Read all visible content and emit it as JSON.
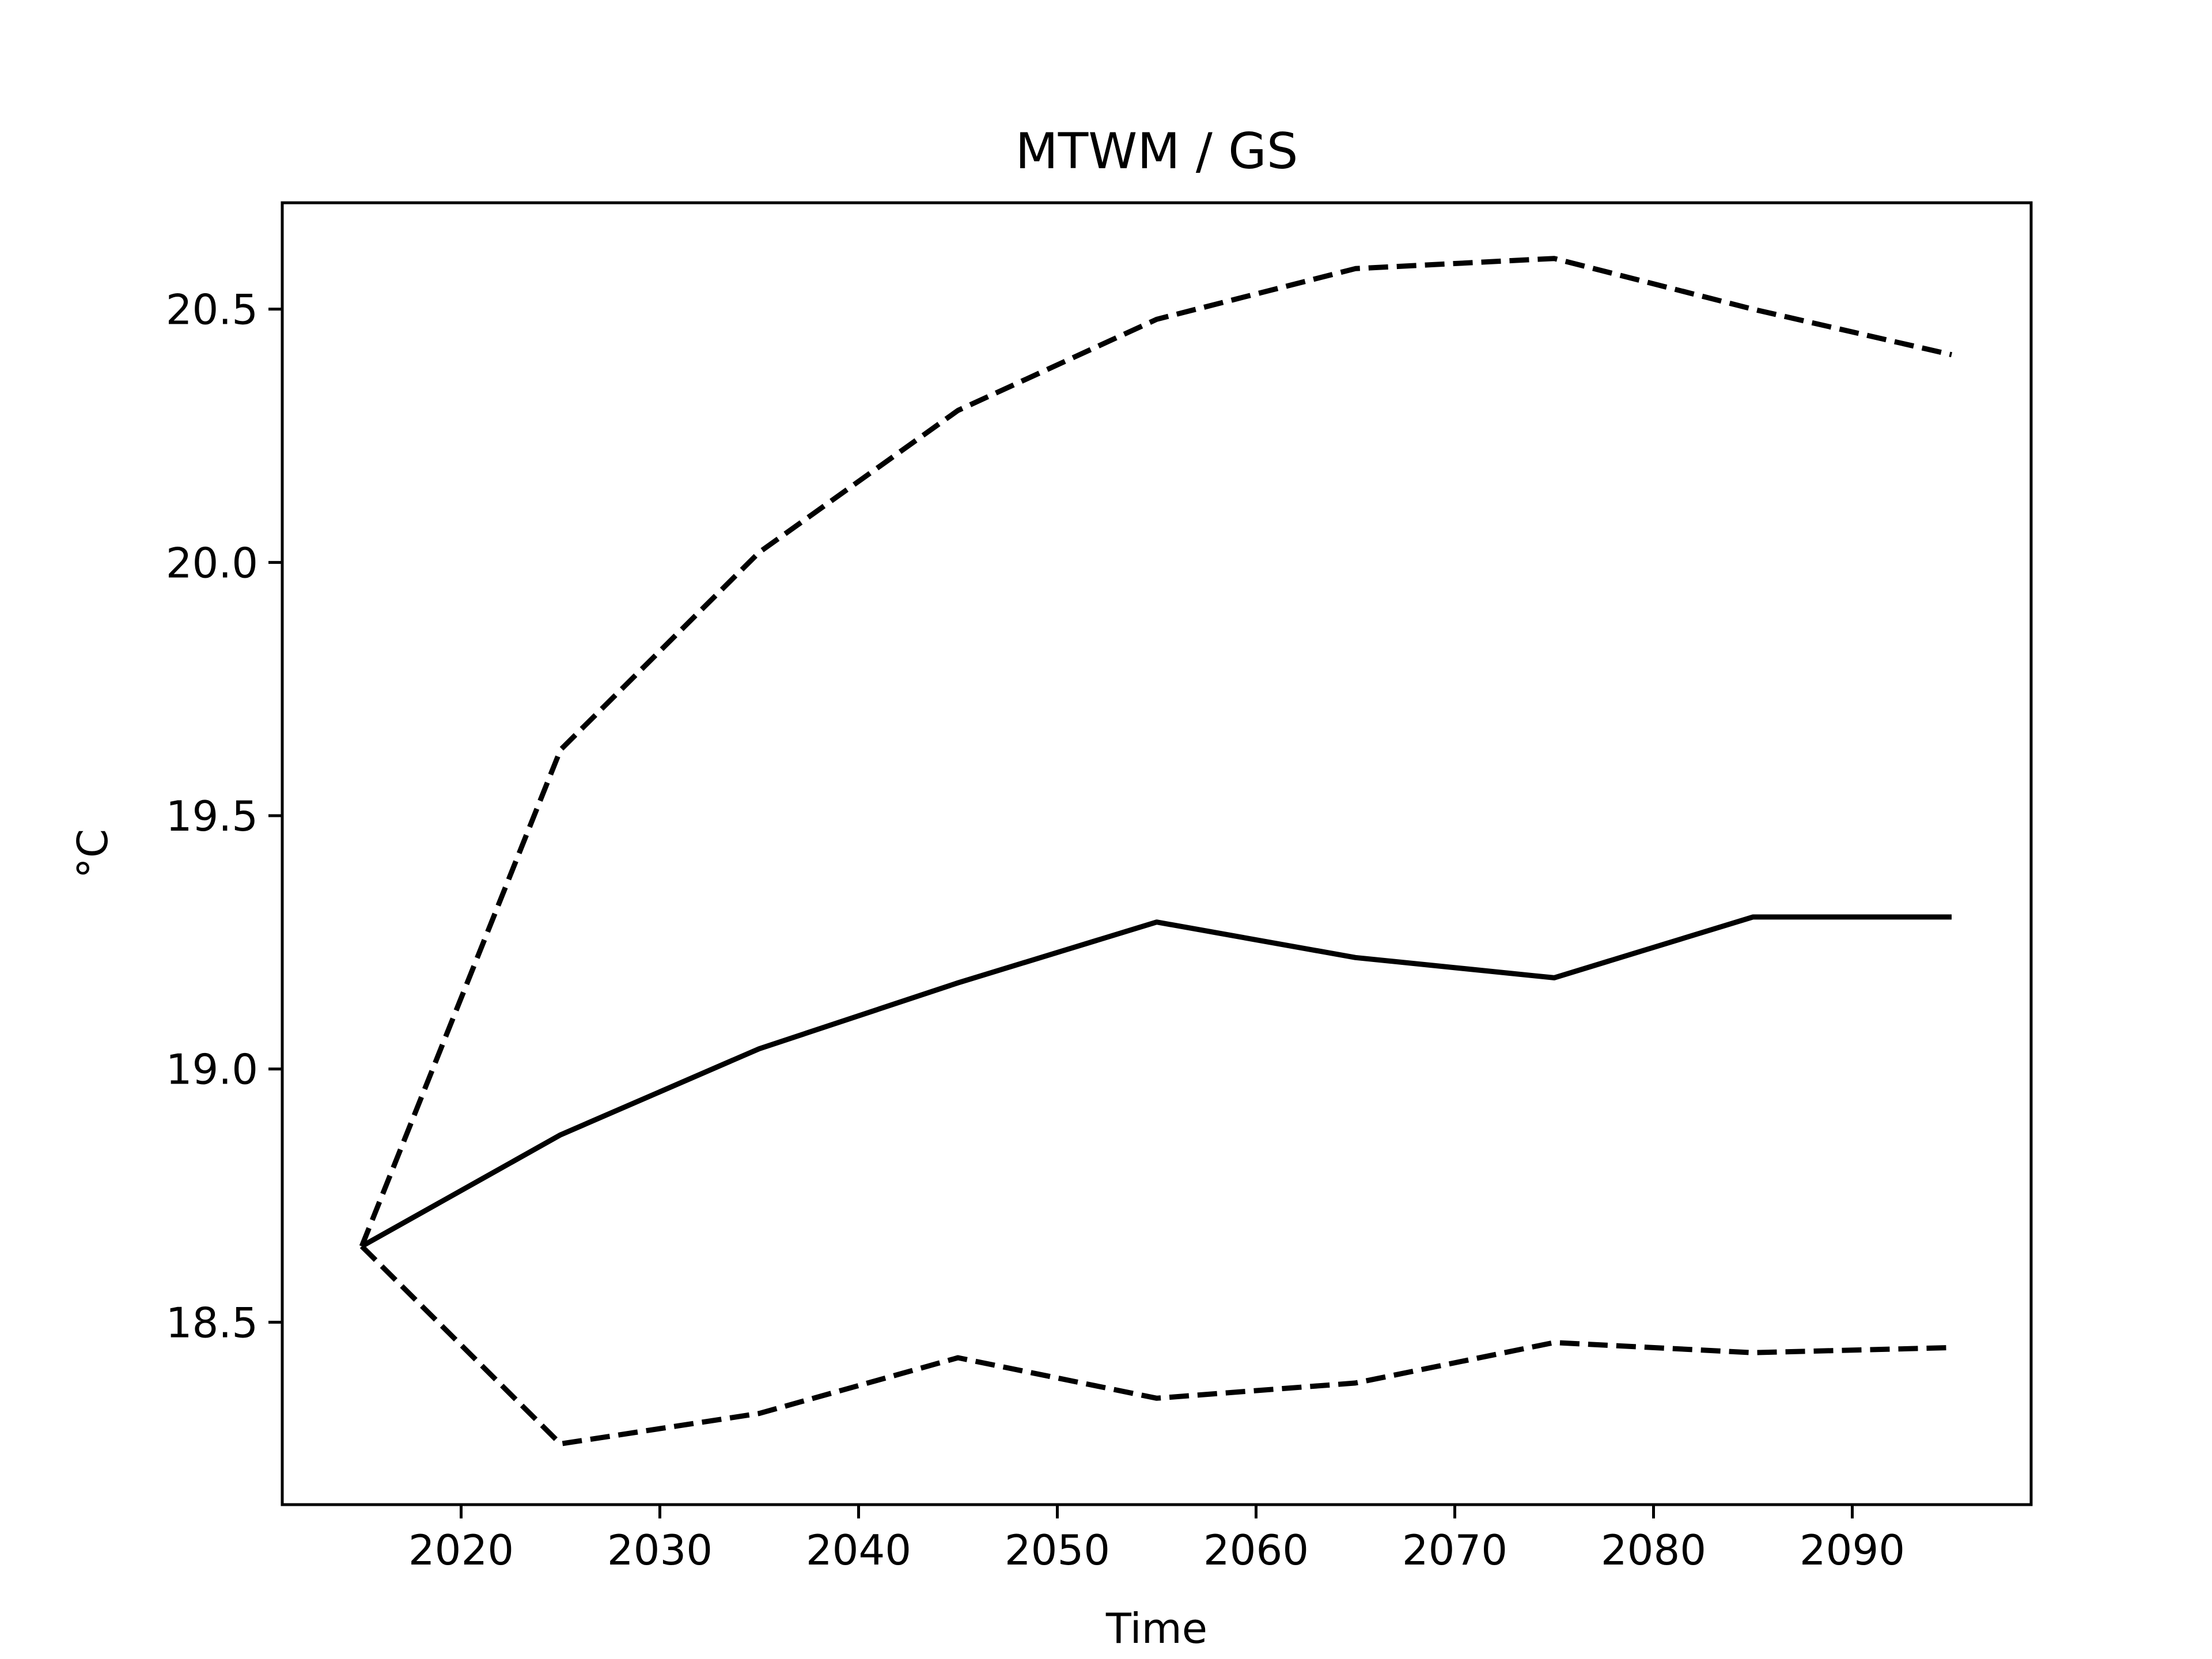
{
  "chart_data": {
    "type": "line",
    "title": "MTWM / GS",
    "xlabel": "Time",
    "ylabel": "°C",
    "xlim": [
      2011,
      2099
    ],
    "ylim": [
      18.14,
      20.71
    ],
    "xticks": [
      2020,
      2030,
      2040,
      2050,
      2060,
      2070,
      2080,
      2090
    ],
    "yticks": [
      18.5,
      19.0,
      19.5,
      20.0,
      20.5
    ],
    "ytick_labels": [
      "18.5",
      "19.0",
      "19.5",
      "20.0",
      "20.5"
    ],
    "grid": false,
    "legend": "none",
    "x": [
      2015,
      2025,
      2035,
      2045,
      2055,
      2065,
      2075,
      2085,
      2095
    ],
    "series": [
      {
        "style": "dashed",
        "color": "#000000",
        "values": [
          18.65,
          19.63,
          20.02,
          20.3,
          20.48,
          20.58,
          20.6,
          20.5,
          20.41
        ]
      },
      {
        "style": "solid",
        "color": "#000000",
        "values": [
          18.65,
          18.87,
          19.04,
          19.17,
          19.29,
          19.22,
          19.18,
          19.3,
          19.3
        ]
      },
      {
        "style": "dashed",
        "color": "#000000",
        "values": [
          18.65,
          18.26,
          18.32,
          18.43,
          18.35,
          18.38,
          18.46,
          18.44,
          18.45
        ]
      }
    ]
  }
}
